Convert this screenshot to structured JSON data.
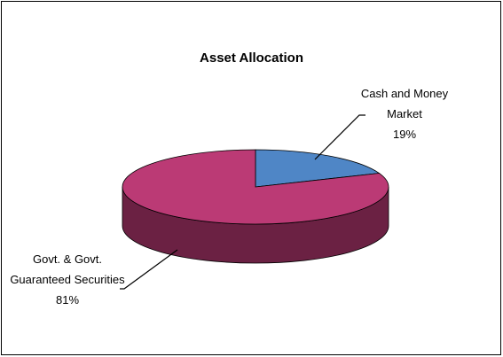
{
  "chart_data": {
    "type": "pie3d",
    "title": "Asset Allocation",
    "categories": [
      "Cash and Money Market",
      "Govt. & Govt. Guaranteed Securities"
    ],
    "values": [
      19,
      81
    ],
    "value_labels": [
      "19%",
      "81%"
    ],
    "colors": [
      "#4f86c6",
      "#bb3a75"
    ]
  }
}
